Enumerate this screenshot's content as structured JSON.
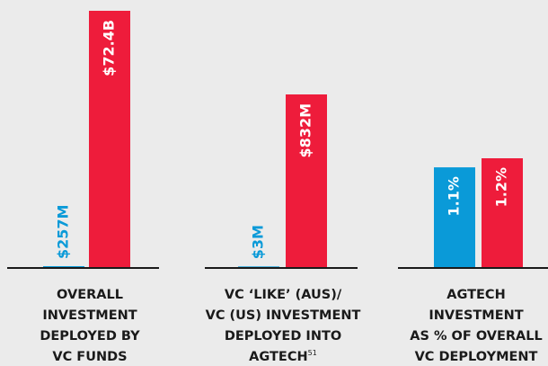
{
  "chart_data": [
    {
      "type": "bar",
      "values": [
        257000000,
        72400000000
      ],
      "value_labels": [
        "$257M",
        "$72.4B"
      ],
      "colors": [
        "#0a9ad8",
        "#ee1c3b"
      ],
      "label_lines": [
        "OVERALL",
        "INVESTMENT",
        "DEPLOYED BY",
        "VC FUNDS"
      ]
    },
    {
      "type": "bar",
      "values": [
        3000000,
        832000000
      ],
      "value_labels": [
        "$3M",
        "$832M"
      ],
      "colors": [
        "#0a9ad8",
        "#ee1c3b"
      ],
      "label_lines": [
        "VC ‘LIKE’ (AUS)/",
        "VC (US) INVESTMENT",
        "DEPLOYED INTO",
        "AGTECH"
      ],
      "footnote": "51"
    },
    {
      "type": "bar",
      "values": [
        1.1,
        1.2
      ],
      "value_labels": [
        "1.1%",
        "1.2%"
      ],
      "colors": [
        "#0a9ad8",
        "#ee1c3b"
      ],
      "label_lines": [
        "AGTECH",
        "INVESTMENT",
        "AS % OF OVERALL",
        "VC DEPLOYMENT"
      ]
    }
  ]
}
